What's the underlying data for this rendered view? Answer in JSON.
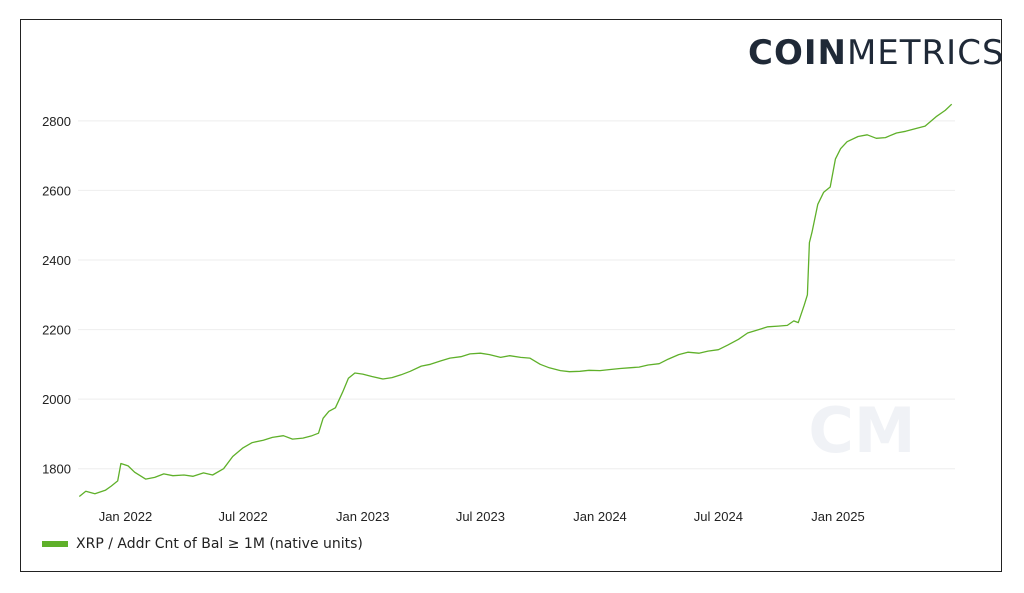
{
  "brand": {
    "logo_bold": "COIN",
    "logo_thin": "METRICS",
    "watermark": "CM"
  },
  "colors": {
    "series": "#5fb02a",
    "grid": "#eeeeee",
    "text": "#222222",
    "frame": "#222222"
  },
  "chart_data": {
    "type": "line",
    "title": "",
    "xlabel": "",
    "ylabel": "",
    "ylim": [
      1710,
      2860
    ],
    "y_ticks": [
      1800,
      2000,
      2200,
      2400,
      2600,
      2800
    ],
    "y_tick_labels": [
      "1800",
      "2000",
      "2200",
      "2400",
      "2600",
      "2800"
    ],
    "x_ticks": [
      "2022-01-01",
      "2022-07-01",
      "2023-01-01",
      "2023-07-01",
      "2024-01-01",
      "2024-07-01",
      "2025-01-01"
    ],
    "x_tick_labels": [
      "Jan 2022",
      "Jul 2022",
      "Jan 2023",
      "Jul 2023",
      "Jan 2024",
      "Jul 2024",
      "Jan 2025"
    ],
    "x_range": [
      "2021-10-20",
      "2025-06-30"
    ],
    "grid": true,
    "legend_position": "bottom-left",
    "series": [
      {
        "name": "XRP / Addr Cnt of Bal ≥ 1M (native units)",
        "points": [
          [
            "2021-10-22",
            1720
          ],
          [
            "2021-11-01",
            1735
          ],
          [
            "2021-11-15",
            1728
          ],
          [
            "2021-12-01",
            1738
          ],
          [
            "2021-12-10",
            1750
          ],
          [
            "2021-12-20",
            1765
          ],
          [
            "2021-12-25",
            1815
          ],
          [
            "2022-01-05",
            1808
          ],
          [
            "2022-01-15",
            1790
          ],
          [
            "2022-02-01",
            1770
          ],
          [
            "2022-02-15",
            1775
          ],
          [
            "2022-03-01",
            1785
          ],
          [
            "2022-03-15",
            1780
          ],
          [
            "2022-04-01",
            1782
          ],
          [
            "2022-04-15",
            1778
          ],
          [
            "2022-05-01",
            1788
          ],
          [
            "2022-05-15",
            1782
          ],
          [
            "2022-06-01",
            1800
          ],
          [
            "2022-06-15",
            1835
          ],
          [
            "2022-07-01",
            1860
          ],
          [
            "2022-07-15",
            1875
          ],
          [
            "2022-08-01",
            1882
          ],
          [
            "2022-08-15",
            1890
          ],
          [
            "2022-09-01",
            1895
          ],
          [
            "2022-09-15",
            1885
          ],
          [
            "2022-10-01",
            1888
          ],
          [
            "2022-10-15",
            1895
          ],
          [
            "2022-10-25",
            1902
          ],
          [
            "2022-11-01",
            1945
          ],
          [
            "2022-11-10",
            1965
          ],
          [
            "2022-11-20",
            1975
          ],
          [
            "2022-12-01",
            2020
          ],
          [
            "2022-12-10",
            2060
          ],
          [
            "2022-12-20",
            2075
          ],
          [
            "2023-01-01",
            2072
          ],
          [
            "2023-01-15",
            2065
          ],
          [
            "2023-02-01",
            2058
          ],
          [
            "2023-02-15",
            2062
          ],
          [
            "2023-03-01",
            2070
          ],
          [
            "2023-03-15",
            2080
          ],
          [
            "2023-04-01",
            2095
          ],
          [
            "2023-04-15",
            2100
          ],
          [
            "2023-05-01",
            2110
          ],
          [
            "2023-05-15",
            2118
          ],
          [
            "2023-06-01",
            2122
          ],
          [
            "2023-06-15",
            2130
          ],
          [
            "2023-07-01",
            2132
          ],
          [
            "2023-07-15",
            2128
          ],
          [
            "2023-08-01",
            2120
          ],
          [
            "2023-08-15",
            2125
          ],
          [
            "2023-09-01",
            2120
          ],
          [
            "2023-09-15",
            2118
          ],
          [
            "2023-10-01",
            2100
          ],
          [
            "2023-10-15",
            2090
          ],
          [
            "2023-11-01",
            2082
          ],
          [
            "2023-11-15",
            2079
          ],
          [
            "2023-12-01",
            2080
          ],
          [
            "2023-12-15",
            2083
          ],
          [
            "2024-01-01",
            2082
          ],
          [
            "2024-01-15",
            2085
          ],
          [
            "2024-02-01",
            2088
          ],
          [
            "2024-02-15",
            2090
          ],
          [
            "2024-03-01",
            2092
          ],
          [
            "2024-03-15",
            2098
          ],
          [
            "2024-04-01",
            2102
          ],
          [
            "2024-04-15",
            2115
          ],
          [
            "2024-05-01",
            2128
          ],
          [
            "2024-05-15",
            2135
          ],
          [
            "2024-06-01",
            2132
          ],
          [
            "2024-06-15",
            2138
          ],
          [
            "2024-07-01",
            2142
          ],
          [
            "2024-07-15",
            2155
          ],
          [
            "2024-08-01",
            2172
          ],
          [
            "2024-08-15",
            2190
          ],
          [
            "2024-09-01",
            2200
          ],
          [
            "2024-09-15",
            2208
          ],
          [
            "2024-10-01",
            2210
          ],
          [
            "2024-10-15",
            2212
          ],
          [
            "2024-10-25",
            2225
          ],
          [
            "2024-11-01",
            2220
          ],
          [
            "2024-11-10",
            2270
          ],
          [
            "2024-11-15",
            2300
          ],
          [
            "2024-11-18",
            2450
          ],
          [
            "2024-11-22",
            2480
          ],
          [
            "2024-12-01",
            2560
          ],
          [
            "2024-12-10",
            2595
          ],
          [
            "2024-12-20",
            2610
          ],
          [
            "2024-12-28",
            2690
          ],
          [
            "2025-01-05",
            2720
          ],
          [
            "2025-01-15",
            2740
          ],
          [
            "2025-02-01",
            2755
          ],
          [
            "2025-02-15",
            2760
          ],
          [
            "2025-03-01",
            2750
          ],
          [
            "2025-03-15",
            2752
          ],
          [
            "2025-04-01",
            2765
          ],
          [
            "2025-04-15",
            2770
          ],
          [
            "2025-05-01",
            2778
          ],
          [
            "2025-05-15",
            2785
          ],
          [
            "2025-06-01",
            2812
          ],
          [
            "2025-06-15",
            2830
          ],
          [
            "2025-06-25",
            2848
          ]
        ]
      }
    ]
  }
}
